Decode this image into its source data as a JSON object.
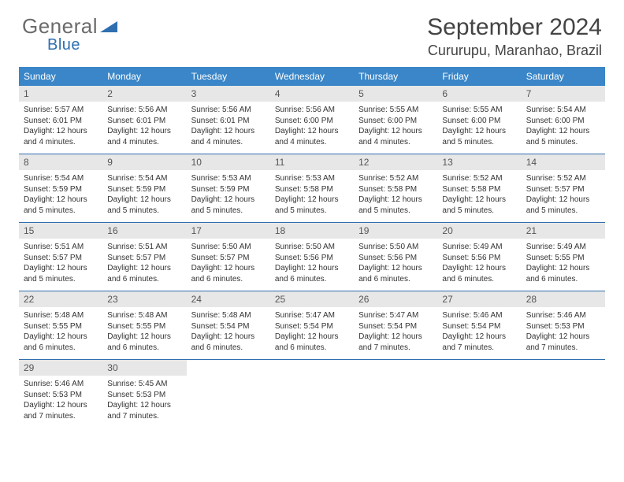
{
  "brand": {
    "part1": "General",
    "part2": "Blue"
  },
  "title": "September 2024",
  "location": "Cururupu, Maranhao, Brazil",
  "colors": {
    "header_bar": "#3a86c8",
    "week_border": "#2f6fb0",
    "daynum_bg": "#e7e7e7",
    "text": "#333333",
    "brand_gray": "#6b6b6b",
    "brand_blue": "#2f6fb0"
  },
  "days_of_week": [
    "Sunday",
    "Monday",
    "Tuesday",
    "Wednesday",
    "Thursday",
    "Friday",
    "Saturday"
  ],
  "weeks": [
    [
      {
        "n": "1",
        "sr": "5:57 AM",
        "ss": "6:01 PM",
        "dl": "12 hours and 4 minutes."
      },
      {
        "n": "2",
        "sr": "5:56 AM",
        "ss": "6:01 PM",
        "dl": "12 hours and 4 minutes."
      },
      {
        "n": "3",
        "sr": "5:56 AM",
        "ss": "6:01 PM",
        "dl": "12 hours and 4 minutes."
      },
      {
        "n": "4",
        "sr": "5:56 AM",
        "ss": "6:00 PM",
        "dl": "12 hours and 4 minutes."
      },
      {
        "n": "5",
        "sr": "5:55 AM",
        "ss": "6:00 PM",
        "dl": "12 hours and 4 minutes."
      },
      {
        "n": "6",
        "sr": "5:55 AM",
        "ss": "6:00 PM",
        "dl": "12 hours and 5 minutes."
      },
      {
        "n": "7",
        "sr": "5:54 AM",
        "ss": "6:00 PM",
        "dl": "12 hours and 5 minutes."
      }
    ],
    [
      {
        "n": "8",
        "sr": "5:54 AM",
        "ss": "5:59 PM",
        "dl": "12 hours and 5 minutes."
      },
      {
        "n": "9",
        "sr": "5:54 AM",
        "ss": "5:59 PM",
        "dl": "12 hours and 5 minutes."
      },
      {
        "n": "10",
        "sr": "5:53 AM",
        "ss": "5:59 PM",
        "dl": "12 hours and 5 minutes."
      },
      {
        "n": "11",
        "sr": "5:53 AM",
        "ss": "5:58 PM",
        "dl": "12 hours and 5 minutes."
      },
      {
        "n": "12",
        "sr": "5:52 AM",
        "ss": "5:58 PM",
        "dl": "12 hours and 5 minutes."
      },
      {
        "n": "13",
        "sr": "5:52 AM",
        "ss": "5:58 PM",
        "dl": "12 hours and 5 minutes."
      },
      {
        "n": "14",
        "sr": "5:52 AM",
        "ss": "5:57 PM",
        "dl": "12 hours and 5 minutes."
      }
    ],
    [
      {
        "n": "15",
        "sr": "5:51 AM",
        "ss": "5:57 PM",
        "dl": "12 hours and 5 minutes."
      },
      {
        "n": "16",
        "sr": "5:51 AM",
        "ss": "5:57 PM",
        "dl": "12 hours and 6 minutes."
      },
      {
        "n": "17",
        "sr": "5:50 AM",
        "ss": "5:57 PM",
        "dl": "12 hours and 6 minutes."
      },
      {
        "n": "18",
        "sr": "5:50 AM",
        "ss": "5:56 PM",
        "dl": "12 hours and 6 minutes."
      },
      {
        "n": "19",
        "sr": "5:50 AM",
        "ss": "5:56 PM",
        "dl": "12 hours and 6 minutes."
      },
      {
        "n": "20",
        "sr": "5:49 AM",
        "ss": "5:56 PM",
        "dl": "12 hours and 6 minutes."
      },
      {
        "n": "21",
        "sr": "5:49 AM",
        "ss": "5:55 PM",
        "dl": "12 hours and 6 minutes."
      }
    ],
    [
      {
        "n": "22",
        "sr": "5:48 AM",
        "ss": "5:55 PM",
        "dl": "12 hours and 6 minutes."
      },
      {
        "n": "23",
        "sr": "5:48 AM",
        "ss": "5:55 PM",
        "dl": "12 hours and 6 minutes."
      },
      {
        "n": "24",
        "sr": "5:48 AM",
        "ss": "5:54 PM",
        "dl": "12 hours and 6 minutes."
      },
      {
        "n": "25",
        "sr": "5:47 AM",
        "ss": "5:54 PM",
        "dl": "12 hours and 6 minutes."
      },
      {
        "n": "26",
        "sr": "5:47 AM",
        "ss": "5:54 PM",
        "dl": "12 hours and 7 minutes."
      },
      {
        "n": "27",
        "sr": "5:46 AM",
        "ss": "5:54 PM",
        "dl": "12 hours and 7 minutes."
      },
      {
        "n": "28",
        "sr": "5:46 AM",
        "ss": "5:53 PM",
        "dl": "12 hours and 7 minutes."
      }
    ],
    [
      {
        "n": "29",
        "sr": "5:46 AM",
        "ss": "5:53 PM",
        "dl": "12 hours and 7 minutes."
      },
      {
        "n": "30",
        "sr": "5:45 AM",
        "ss": "5:53 PM",
        "dl": "12 hours and 7 minutes."
      },
      null,
      null,
      null,
      null,
      null
    ]
  ],
  "labels": {
    "sunrise": "Sunrise:",
    "sunset": "Sunset:",
    "daylight": "Daylight:"
  }
}
